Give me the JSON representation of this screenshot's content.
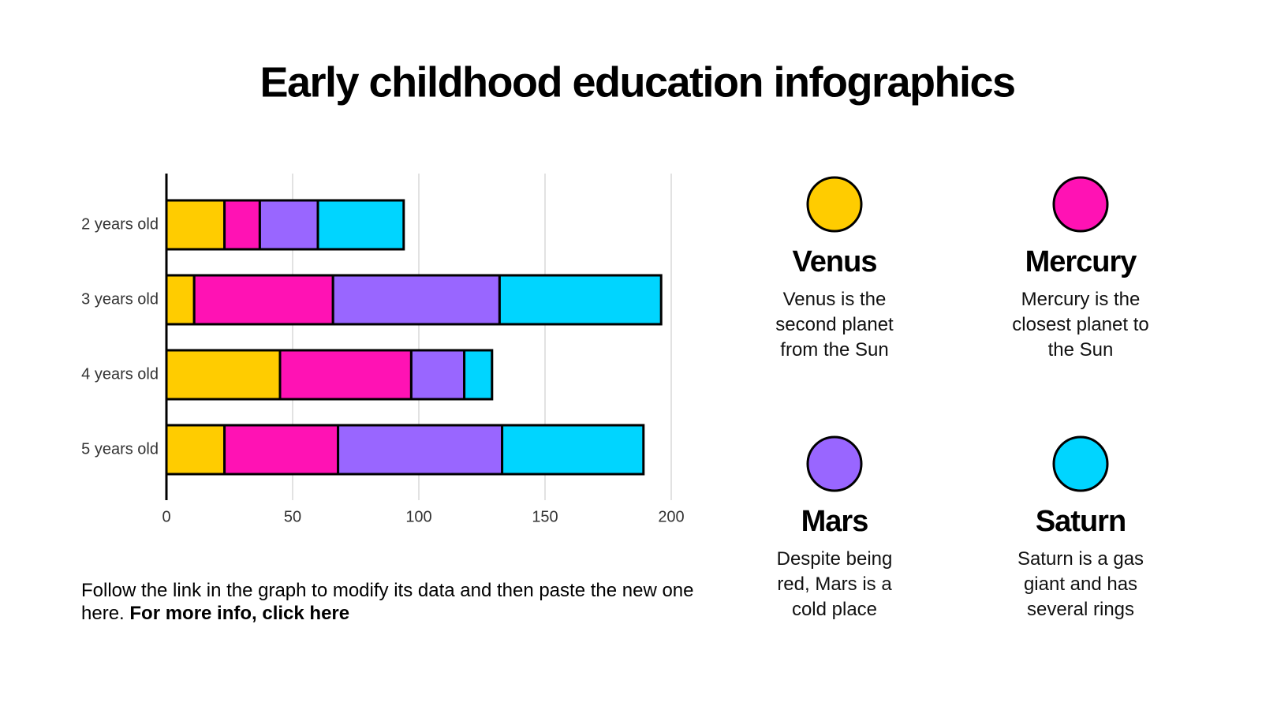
{
  "chart_data": {
    "type": "bar",
    "orientation": "horizontal",
    "stacked": true,
    "title": "Early childhood education infographics",
    "categories": [
      "2 years old",
      "3 years old",
      "4 years old",
      "5 years old"
    ],
    "series": [
      {
        "name": "Venus",
        "color": "#ffcc00",
        "values": [
          23,
          11,
          45,
          23
        ],
        "description": "Venus is the second planet from the Sun"
      },
      {
        "name": "Mercury",
        "color": "#ff12b4",
        "values": [
          14,
          55,
          52,
          45
        ],
        "description": "Mercury is the closest planet to the Sun"
      },
      {
        "name": "Mars",
        "color": "#9966ff",
        "values": [
          23,
          66,
          21,
          65
        ],
        "description": "Despite being red, Mars is a cold place"
      },
      {
        "name": "Saturn",
        "color": "#00d5ff",
        "values": [
          34,
          64,
          11,
          56
        ],
        "description": "Saturn is a gas giant and has several rings"
      }
    ],
    "xlim": [
      0,
      200
    ],
    "xticks": [
      0,
      50,
      100,
      150,
      200
    ],
    "grid": true
  },
  "footnote": {
    "text": "Follow the link in the graph to modify its data and then paste the new one here.",
    "link": "For more info, click here"
  }
}
